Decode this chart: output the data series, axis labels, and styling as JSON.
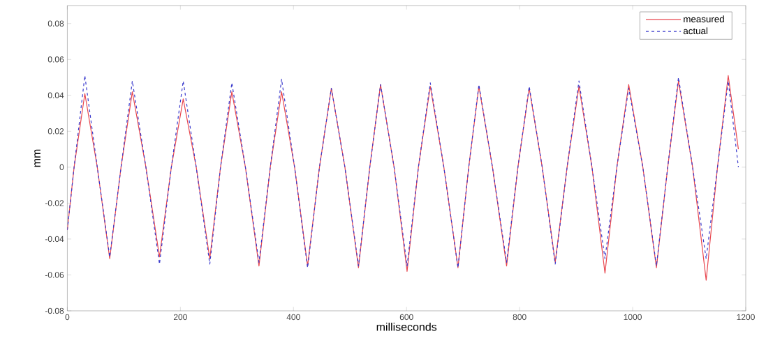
{
  "chart_data": {
    "type": "line",
    "xlabel": "milliseconds",
    "ylabel": "mm",
    "x": [
      0,
      12,
      31,
      53,
      75,
      95,
      115,
      139,
      163,
      184,
      205,
      228,
      252,
      271,
      291,
      315,
      339,
      359,
      379,
      402,
      425,
      446,
      467,
      491,
      515,
      535,
      554,
      578,
      601,
      621,
      642,
      666,
      691,
      710,
      728,
      752,
      777,
      797,
      817,
      840,
      863,
      884,
      905,
      928,
      951,
      972,
      993,
      1018,
      1042,
      1062,
      1081,
      1106,
      1130,
      1150,
      1169,
      1187
    ],
    "series": [
      {
        "name": "measured",
        "color": "#e8474f",
        "line_style": "solid",
        "values": [
          -0.035,
          0,
          0.041,
          0,
          -0.051,
          0,
          0.042,
          0,
          -0.05,
          0,
          0.038,
          0,
          -0.051,
          0,
          0.042,
          0,
          -0.055,
          0,
          0.042,
          0,
          -0.055,
          0,
          0.044,
          0,
          -0.056,
          0,
          0.046,
          0,
          -0.058,
          0,
          0.045,
          0,
          -0.056,
          0,
          0.045,
          0,
          -0.055,
          0,
          0.044,
          0,
          -0.053,
          0,
          0.045,
          0,
          -0.059,
          0,
          0.046,
          0,
          -0.056,
          0,
          0.048,
          0,
          -0.063,
          0,
          0.051,
          0.01
        ]
      },
      {
        "name": "actual",
        "color": "#3a3acc",
        "line_style": "dashed",
        "values": [
          -0.035,
          0,
          0.051,
          0,
          -0.05,
          0,
          0.048,
          0,
          -0.054,
          0,
          0.048,
          0,
          -0.054,
          0,
          0.047,
          0,
          -0.053,
          0,
          0.049,
          0,
          -0.056,
          0,
          0.044,
          0,
          -0.055,
          0,
          0.046,
          0,
          -0.055,
          0,
          0.047,
          0,
          -0.056,
          0,
          0.046,
          0,
          -0.053,
          0,
          0.045,
          0,
          -0.054,
          0,
          0.048,
          0,
          -0.051,
          0,
          0.044,
          0,
          -0.055,
          0,
          0.05,
          0,
          -0.051,
          0,
          0.048,
          0
        ]
      }
    ],
    "xlim": [
      0,
      1200
    ],
    "xticks": [
      0,
      200,
      400,
      600,
      800,
      1000,
      1200
    ],
    "ylim": [
      -0.08,
      0.09
    ],
    "yticks": [
      -0.08,
      -0.06,
      -0.04,
      -0.02,
      0,
      0.02,
      0.04,
      0.06,
      0.08
    ],
    "legend": "top right",
    "marker": "none",
    "grid": false
  }
}
